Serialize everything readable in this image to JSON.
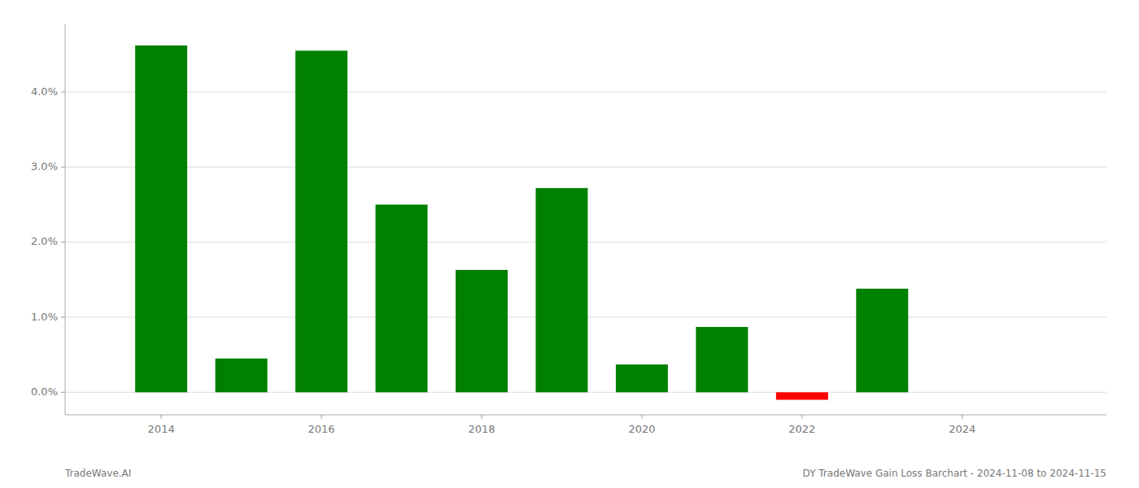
{
  "chart_data": {
    "type": "bar",
    "x": [
      2014,
      2015,
      2016,
      2017,
      2018,
      2019,
      2020,
      2021,
      2022,
      2023
    ],
    "values": [
      0.0462,
      0.0045,
      0.0455,
      0.025,
      0.0163,
      0.0272,
      0.0037,
      0.0087,
      -0.001,
      0.0138
    ],
    "colors": [
      "#008000",
      "#008000",
      "#008000",
      "#008000",
      "#008000",
      "#008000",
      "#008000",
      "#008000",
      "#ff0000",
      "#008000"
    ],
    "xlim": [
      2012.8,
      2025.8
    ],
    "xticks": [
      2014,
      2016,
      2018,
      2020,
      2022,
      2024
    ],
    "ylim": [
      -0.003,
      0.049
    ],
    "yticks": [
      {
        "value": 0,
        "label": "0.0%"
      },
      {
        "value": 0.01,
        "label": "1.0%"
      },
      {
        "value": 0.02,
        "label": "2.0%"
      },
      {
        "value": 0.03,
        "label": "3.0%"
      },
      {
        "value": 0.04,
        "label": "4.0%"
      }
    ],
    "grid": true,
    "annotations": [
      "TradeWave.AI",
      "DY TradeWave Gain Loss Barchart - 2024-11-08 to 2024-11-15"
    ]
  }
}
